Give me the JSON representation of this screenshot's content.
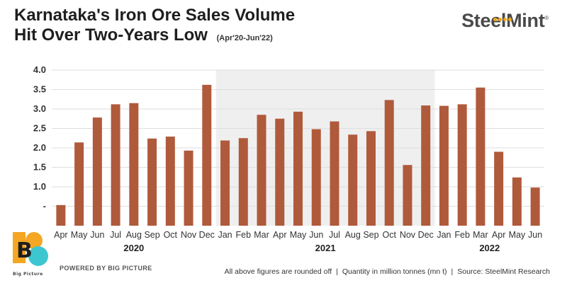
{
  "header": {
    "title_line1": "Karnataka's Iron Ore Sales Volume",
    "title_line2": "Hit Over Two-Years Low",
    "subtitle": "(Apr'20-Jun'22)"
  },
  "brand": {
    "logo_text": "SteelMint",
    "logo_mark": "®",
    "powered_by": "POWERED BY BIG PICTURE",
    "big_picture_mark": "B",
    "big_picture_name": "Big Picture"
  },
  "footer": {
    "note_rounded": "All above figures are rounded off",
    "note_quantity": "Quantity in million tonnes (mn t)",
    "note_source": "Source: SteelMint Research",
    "separator": "|"
  },
  "colors": {
    "bar": "#b05a3c",
    "shaded_year": "#efefef",
    "axis_text": "#333333",
    "logo_accent": "#f0a818",
    "big_picture_orange": "#f5a623",
    "big_picture_teal": "#3ec6d0"
  },
  "chart_data": {
    "type": "bar",
    "title": "Karnataka's Iron Ore Sales Volume Hit Over Two-Years Low",
    "xlabel": "",
    "ylabel": "",
    "ylim": [
      0,
      4
    ],
    "yticks": [
      "4.0",
      "3.5",
      "3.0",
      "2.5",
      "2.0",
      "1.5",
      "1.0",
      "-"
    ],
    "grid": true,
    "categories": [
      "Apr",
      "May",
      "Jun",
      "Jul",
      "Aug",
      "Sep",
      "Oct",
      "Nov",
      "Dec",
      "Jan",
      "Feb",
      "Mar",
      "Apr",
      "May",
      "Jun",
      "Jul",
      "Aug",
      "Sep",
      "Oct",
      "Nov",
      "Dec",
      "Jan",
      "Feb",
      "Mar",
      "Apr",
      "May",
      "Jun"
    ],
    "values": [
      0.53,
      2.14,
      2.78,
      3.12,
      3.15,
      2.24,
      2.29,
      1.93,
      3.62,
      2.19,
      2.25,
      2.85,
      2.75,
      2.93,
      2.48,
      2.68,
      2.34,
      2.43,
      3.23,
      1.56,
      3.09,
      3.08,
      3.12,
      3.55,
      1.9,
      1.24,
      0.98
    ],
    "year_groups": [
      {
        "label": "2020",
        "start": 0,
        "end": 8,
        "shaded": false
      },
      {
        "label": "2021",
        "start": 9,
        "end": 20,
        "shaded": true
      },
      {
        "label": "2022",
        "start": 21,
        "end": 26,
        "shaded": false
      }
    ]
  }
}
